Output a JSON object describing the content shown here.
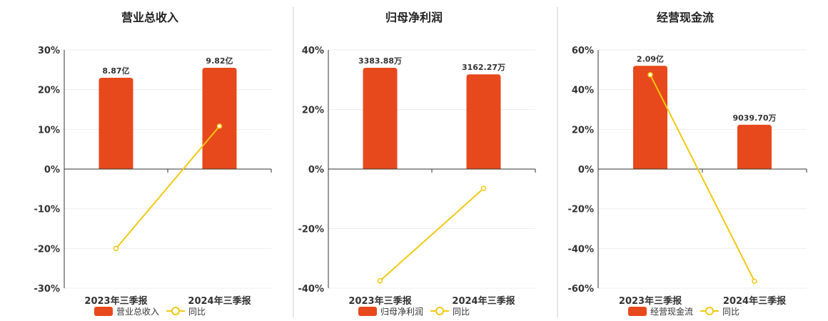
{
  "colors": {
    "bar": "#E8491C",
    "line": "#F2C811",
    "grid": "#EEEEEE",
    "axis": "#333333",
    "divider": "#CCCCCC"
  },
  "chart_data": [
    {
      "type": "bar",
      "title": "营业总收入",
      "categories": [
        "2023年三季报",
        "2024年三季报"
      ],
      "series": [
        {
          "name": "营业总收入",
          "kind": "bar",
          "values": [
            23,
            25.5
          ],
          "labels": [
            "8.87亿",
            "9.82亿"
          ]
        },
        {
          "name": "同比",
          "kind": "line",
          "values": [
            -20,
            10.8
          ]
        }
      ],
      "yticks": [
        "30%",
        "20%",
        "10%",
        "0%",
        "-10%",
        "-20%",
        "-30%"
      ],
      "ylim": [
        -30,
        30
      ]
    },
    {
      "type": "bar",
      "title": "归母净利润",
      "categories": [
        "2023年三季报",
        "2024年三季报"
      ],
      "series": [
        {
          "name": "归母净利润",
          "kind": "bar",
          "values": [
            34,
            31.8
          ],
          "labels": [
            "3383.88万",
            "3162.27万"
          ]
        },
        {
          "name": "同比",
          "kind": "line",
          "values": [
            -37.5,
            -6.5
          ]
        }
      ],
      "yticks": [
        "40%",
        "20%",
        "0%",
        "-20%",
        "-40%"
      ],
      "ylim": [
        -40,
        40
      ]
    },
    {
      "type": "bar",
      "title": "经营现金流",
      "categories": [
        "2023年三季报",
        "2024年三季报"
      ],
      "series": [
        {
          "name": "经营现金流",
          "kind": "bar",
          "values": [
            52,
            22.3
          ],
          "labels": [
            "2.09亿",
            "9039.70万"
          ]
        },
        {
          "name": "同比",
          "kind": "line",
          "values": [
            47.5,
            -56.5
          ]
        }
      ],
      "yticks": [
        "60%",
        "40%",
        "20%",
        "0%",
        "-20%",
        "-40%",
        "-60%"
      ],
      "ylim": [
        -60,
        60
      ]
    }
  ]
}
